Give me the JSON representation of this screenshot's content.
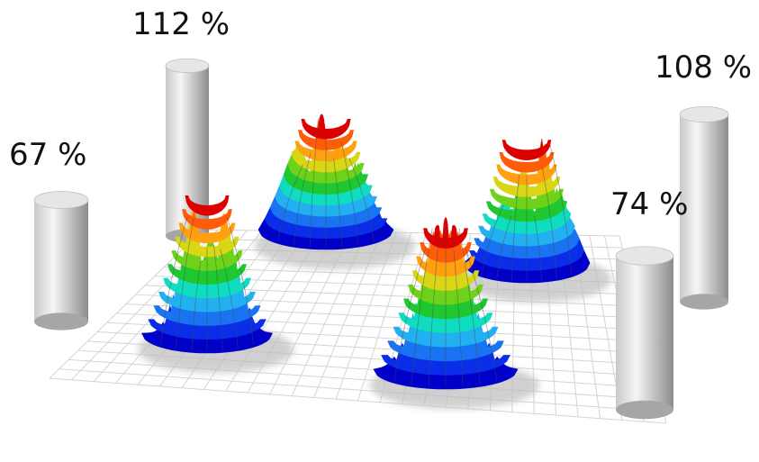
{
  "labels": {
    "cyl_front_left": "67 %",
    "cyl_back_left": "112 %",
    "cyl_front_right": "74 %",
    "cyl_back_right": "108 %"
  },
  "colors": {
    "colormap": [
      "#0000c8",
      "#0a2ee8",
      "#1a73f0",
      "#22b0f0",
      "#10dcc0",
      "#1fc830",
      "#6ed21a",
      "#d8d616",
      "#ffa010",
      "#ff5c0a",
      "#dc0000"
    ],
    "grid_line": "#d4d4d4",
    "shadow": "#bdbdbd",
    "cylinder_light": "#f4f4f4",
    "cylinder_dark": "#8f8f8f"
  }
}
